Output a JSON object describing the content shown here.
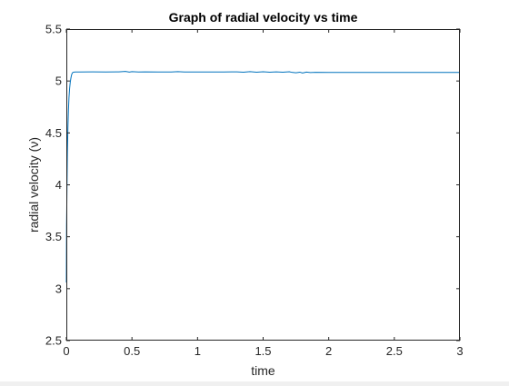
{
  "chart_data": {
    "type": "line",
    "title": "Graph of radial velocity vs time",
    "xlabel": "time",
    "ylabel": "radial velocity (ν)",
    "xlim": [
      0,
      3
    ],
    "ylim": [
      2.5,
      5.5
    ],
    "xticks": [
      0,
      0.5,
      1,
      1.5,
      2,
      2.5,
      3
    ],
    "xtick_labels": [
      "0",
      "0.5",
      "1",
      "1.5",
      "2",
      "2.5",
      "3"
    ],
    "yticks": [
      2.5,
      3,
      3.5,
      4,
      4.5,
      5,
      5.5
    ],
    "ytick_labels": [
      "2.5",
      "3",
      "3.5",
      "4",
      "4.5",
      "5",
      "5.5"
    ],
    "grid": false,
    "series": [
      {
        "color": "#0072bd",
        "x": [
          0,
          0.0015,
          0.003,
          0.005,
          0.008,
          0.012,
          0.016,
          0.02,
          0.025,
          0.03,
          0.035,
          0.04,
          0.045,
          0.05,
          0.055,
          0.06,
          0.07,
          0.1,
          0.2,
          0.3,
          0.4,
          0.45,
          0.48,
          0.5,
          0.55,
          0.6,
          0.7,
          0.8,
          0.85,
          0.9,
          1.0,
          1.1,
          1.2,
          1.3,
          1.35,
          1.4,
          1.45,
          1.5,
          1.55,
          1.6,
          1.65,
          1.7,
          1.72,
          1.75,
          1.78,
          1.8,
          1.83,
          1.86,
          1.9,
          2.0,
          2.5,
          3.0
        ],
        "y": [
          3.06,
          3.61,
          3.75,
          4.0,
          4.3,
          4.55,
          4.72,
          4.84,
          4.93,
          4.99,
          5.03,
          5.06,
          5.075,
          5.083,
          5.085,
          5.086,
          5.087,
          5.087,
          5.088,
          5.087,
          5.088,
          5.092,
          5.086,
          5.09,
          5.087,
          5.088,
          5.087,
          5.087,
          5.09,
          5.087,
          5.087,
          5.087,
          5.087,
          5.088,
          5.084,
          5.09,
          5.085,
          5.089,
          5.084,
          5.088,
          5.085,
          5.089,
          5.083,
          5.079,
          5.085,
          5.077,
          5.086,
          5.081,
          5.083,
          5.082,
          5.082,
          5.082
        ]
      }
    ]
  }
}
